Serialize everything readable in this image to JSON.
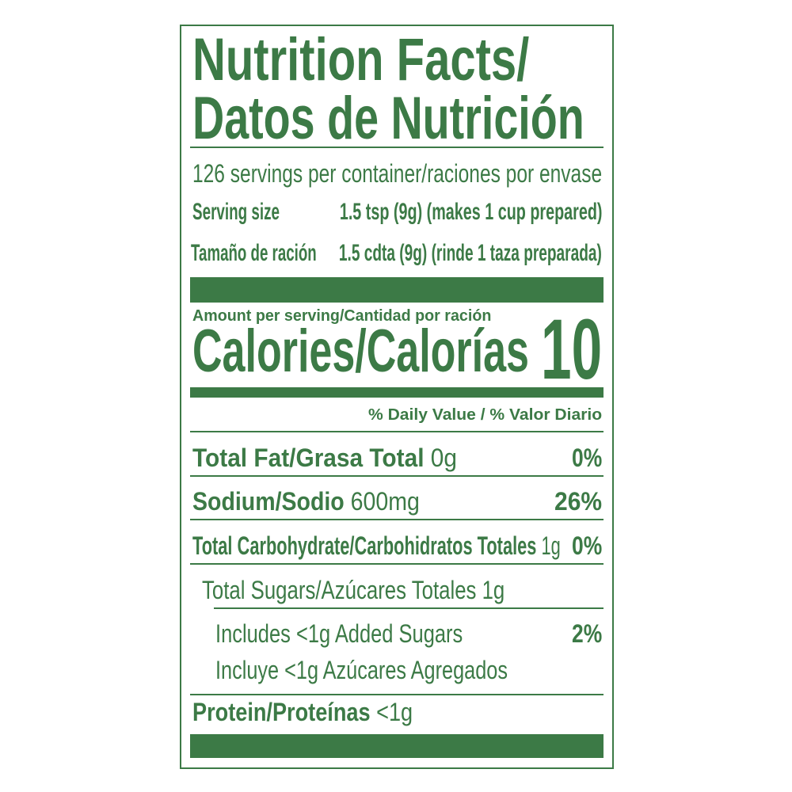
{
  "colors": {
    "label_green": "#3c7a46",
    "background": "#ffffff"
  },
  "title": {
    "line1": "Nutrition Facts/",
    "line2": "Datos de Nutrición"
  },
  "servings_per_container": "126 servings per container/raciones por envase",
  "serving_size": {
    "label_en": "Serving size",
    "value_en": "1.5 tsp (9g) (makes 1 cup prepared)",
    "label_es": "Tamaño de ración",
    "value_es": "1.5 cdta (9g) (rinde 1 taza preparada)"
  },
  "amount_per_serving": "Amount per serving/Cantidad por ración",
  "calories": {
    "label": "Calories/Calorías",
    "value": "10"
  },
  "daily_value_header": "% Daily Value / % Valor Diario",
  "nutrients": {
    "total_fat": {
      "label": "Total Fat/Grasa Total",
      "amount": "0g",
      "dv": "0%"
    },
    "sodium": {
      "label": "Sodium/Sodio",
      "amount": "600mg",
      "dv": "26%"
    },
    "total_carbohydrate": {
      "label": "Total Carbohydrate/Carbohidratos Totales",
      "amount": "1g",
      "dv": "0%"
    },
    "total_sugars": {
      "text": "Total Sugars/Azúcares Totales 1g"
    },
    "added_sugars": {
      "text_en": "Includes <1g Added Sugars",
      "text_es": "Incluye <1g Azúcares Agregados",
      "dv": "2%"
    },
    "protein": {
      "label": "Protein/Proteínas",
      "amount": "<1g"
    }
  }
}
